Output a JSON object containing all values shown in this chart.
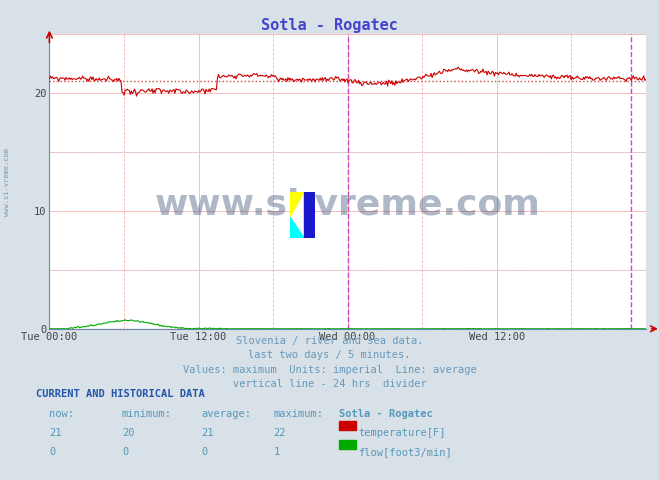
{
  "title": "Sotla - Rogatec",
  "title_color": "#4444cc",
  "bg_color": "#d8e0e8",
  "plot_bg_color": "#ffffff",
  "xlabel_ticks": [
    "Tue 00:00",
    "Tue 12:00",
    "Wed 00:00",
    "Wed 12:00"
  ],
  "xlabel_tick_positions": [
    0.0,
    0.25,
    0.5,
    0.75
  ],
  "ylim": [
    0,
    25
  ],
  "yticks": [
    0,
    10,
    20
  ],
  "grid_color": "#ffb0b0",
  "grid_color2": "#c8d8e8",
  "temp_color": "#cc0000",
  "flow_color": "#00aa00",
  "avg_line_color": "#cc4444",
  "avg_line_style": ":",
  "vline_color_24h": "#cc44cc",
  "vline_color_end": "#cc44cc",
  "vline_style_24h": "--",
  "vline_style_end": "--",
  "arrow_color": "#cc0000",
  "temp_avg": 21,
  "flow_avg": 0,
  "temp_now": 21,
  "temp_min": 20,
  "temp_max": 22,
  "flow_now": 0,
  "flow_min": 0,
  "flow_max": 1,
  "subtitle_lines": [
    "Slovenia / river and sea data.",
    "last two days / 5 minutes.",
    "Values: maximum  Units: imperial  Line: average",
    "vertical line - 24 hrs  divider"
  ],
  "subtitle_color": "#6699bb",
  "footer_header": "CURRENT AND HISTORICAL DATA",
  "footer_header_color": "#2255aa",
  "footer_cols": [
    "now:",
    "minimum:",
    "average:",
    "maximum:",
    "Sotla - Rogatec"
  ],
  "footer_color": "#5599bb",
  "watermark": "www.si-vreme.com",
  "watermark_color": "#1a3560",
  "sidebar_text": "www.si-vreme.com"
}
